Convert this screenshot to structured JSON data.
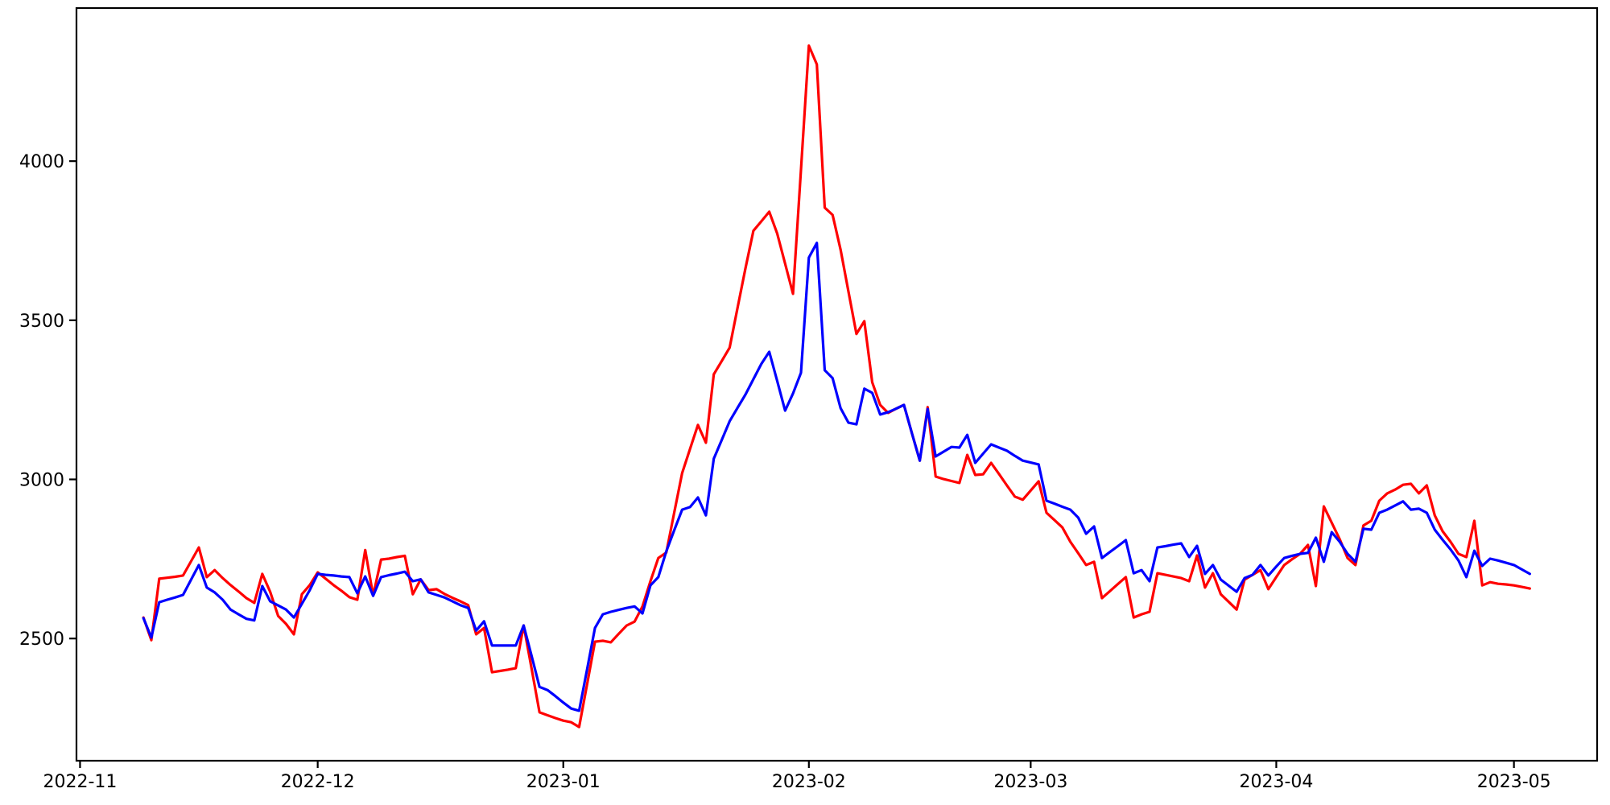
{
  "figure": {
    "background_color": "#ffffff",
    "spine_color": "#000000",
    "title": "",
    "legend_visible": false
  },
  "chart_data": {
    "type": "line",
    "title": "",
    "xlabel": "",
    "ylabel": "",
    "grid": false,
    "legend_position": "none",
    "x_axis": {
      "origin": "2022-11-01",
      "range_days": [
        -0.45,
        191.5
      ],
      "ticks": [
        {
          "date": "2022-11-01",
          "label": "2022-11"
        },
        {
          "date": "2022-12-01",
          "label": "2022-12"
        },
        {
          "date": "2023-01-01",
          "label": "2023-01"
        },
        {
          "date": "2023-02-01",
          "label": "2023-02"
        },
        {
          "date": "2023-03-01",
          "label": "2023-03"
        },
        {
          "date": "2023-04-01",
          "label": "2023-04"
        },
        {
          "date": "2023-05-01",
          "label": "2023-05"
        }
      ]
    },
    "y_axis": {
      "range": [
        2116,
        4481
      ],
      "ticks": [
        {
          "value": 2500,
          "label": "2500"
        },
        {
          "value": 3000,
          "label": "3000"
        },
        {
          "value": 3500,
          "label": "3500"
        },
        {
          "value": 4000,
          "label": "4000"
        }
      ]
    },
    "series_start_date": "2022-11-09",
    "series_end_date": "2023-05-03",
    "series_frequency": "daily",
    "series": [
      {
        "name": "red",
        "color": "#ff0000",
        "values": [
          2566,
          2495,
          2688,
          2691,
          2694,
          2698,
          2742,
          2786,
          2693,
          2715,
          2690,
          2668,
          2648,
          2627,
          2612,
          2703,
          2647,
          2571,
          2546,
          2513,
          2639,
          2668,
          2708,
          2688,
          2668,
          2650,
          2630,
          2622,
          2778,
          2635,
          2748,
          2751,
          2756,
          2760,
          2639,
          2686,
          2652,
          2655,
          2640,
          2628,
          2617,
          2605,
          2513,
          2533,
          2394,
          2398,
          2402,
          2407,
          2541,
          2405,
          2268,
          2259,
          2250,
          2242,
          2237,
          2222,
          2356,
          2490,
          2493,
          2488,
          2515,
          2541,
          2553,
          2601,
          2680,
          2753,
          2770,
          2895,
          3020,
          3096,
          3171,
          3115,
          3330,
          3372,
          3414,
          3539,
          3664,
          3781,
          3811,
          3841,
          3773,
          3678,
          3583,
          3973,
          4363,
          4304,
          3854,
          3831,
          3722,
          3590,
          3457,
          3497,
          3305,
          3234,
          3209,
          3222,
          3234,
          3146,
          3059,
          3227,
          3009,
          3001,
          2995,
          2989,
          3077,
          3014,
          3016,
          3052,
          3017,
          2981,
          2946,
          2936,
          2965,
          2994,
          2895,
          2872,
          2849,
          2804,
          2768,
          2731,
          2741,
          2627,
          2649,
          2671,
          2693,
          2566,
          2576,
          2584,
          2705,
          2700,
          2695,
          2690,
          2680,
          2761,
          2660,
          2705,
          2639,
          2615,
          2591,
          2685,
          2700,
          2715,
          2655,
          2693,
          2731,
          2749,
          2766,
          2794,
          2665,
          2915,
          2864,
          2812,
          2753,
          2731,
          2855,
          2870,
          2933,
          2956,
          2968,
          2983,
          2986,
          2956,
          2981,
          2887,
          2837,
          2804,
          2766,
          2756,
          2870,
          2667,
          2677,
          2672,
          2670,
          2667,
          2662,
          2657
        ]
      },
      {
        "name": "blue",
        "color": "#0000ff",
        "values": [
          2564,
          2503,
          2614,
          2622,
          2629,
          2637,
          2684,
          2731,
          2660,
          2645,
          2622,
          2591,
          2576,
          2562,
          2557,
          2665,
          2617,
          2604,
          2591,
          2566,
          2609,
          2652,
          2703,
          2700,
          2698,
          2695,
          2693,
          2642,
          2695,
          2634,
          2693,
          2699,
          2704,
          2710,
          2680,
          2686,
          2645,
          2637,
          2629,
          2617,
          2605,
          2596,
          2525,
          2554,
          2478,
          2478,
          2478,
          2478,
          2541,
          2445,
          2348,
          2338,
          2319,
          2299,
          2280,
          2273,
          2403,
          2533,
          2576,
          2584,
          2590,
          2596,
          2601,
          2579,
          2667,
          2693,
          2774,
          2840,
          2905,
          2913,
          2943,
          2887,
          3065,
          3124,
          3183,
          3225,
          3267,
          3315,
          3363,
          3401,
          3310,
          3216,
          3270,
          3335,
          3697,
          3743,
          3343,
          3318,
          3224,
          3178,
          3173,
          3285,
          3272,
          3204,
          3211,
          3222,
          3234,
          3146,
          3059,
          3221,
          3072,
          3087,
          3102,
          3100,
          3140,
          3052,
          3081,
          3110,
          3100,
          3090,
          3074,
          3059,
          3053,
          3047,
          2933,
          2924,
          2914,
          2905,
          2880,
          2829,
          2852,
          2753,
          2772,
          2790,
          2809,
          2705,
          2715,
          2680,
          2786,
          2790,
          2795,
          2799,
          2756,
          2791,
          2703,
          2731,
          2685,
          2666,
          2647,
          2690,
          2700,
          2731,
          2698,
          2726,
          2753,
          2760,
          2766,
          2769,
          2817,
          2741,
          2834,
          2804,
          2766,
          2741,
          2845,
          2842,
          2895,
          2905,
          2918,
          2931,
          2905,
          2908,
          2895,
          2842,
          2810,
          2780,
          2745,
          2693,
          2776,
          2728,
          2751,
          2745,
          2738,
          2731,
          2717,
          2703
        ]
      }
    ]
  }
}
